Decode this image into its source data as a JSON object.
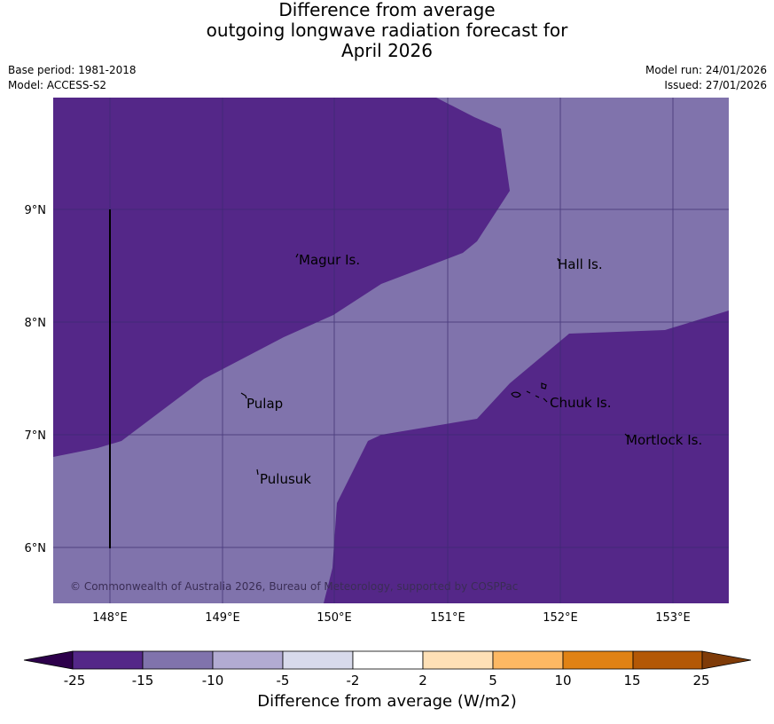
{
  "title": {
    "line1": "Difference from average",
    "line2": "outgoing longwave radiation forecast for",
    "line3": "April 2026"
  },
  "meta": {
    "base_period": "Base period: 1981-2018",
    "model": "Model: ACCESS-S2",
    "model_run": "Model run: 24/01/2026",
    "issued": "Issued: 27/01/2026"
  },
  "map": {
    "lon_ticks": [
      "148°E",
      "149°E",
      "150°E",
      "151°E",
      "152°E",
      "153°E"
    ],
    "lat_ticks": [
      "9°N",
      "8°N",
      "7°N",
      "6°N"
    ],
    "places": [
      "Magur Is.",
      "Hall Is.",
      "Pulap",
      "Chuuk Is.",
      "Mortlock Is.",
      "Pulusuk"
    ],
    "copyright": "© Commonwealth of Australia 2026, Bureau of Meteorology, supported by COSPPac",
    "colors": {
      "band_neg25_neg15": "#542788",
      "band_neg15_neg10": "#8073ac",
      "grid": "#3a2a66"
    }
  },
  "colorbar": {
    "label": "Difference from average (W/m2)",
    "ticks": [
      "-25",
      "-15",
      "-10",
      "-5",
      "-2",
      "2",
      "5",
      "10",
      "15",
      "25"
    ],
    "colors": [
      "#2d004b",
      "#542788",
      "#8073ac",
      "#b2abd2",
      "#d8daeb",
      "#ffffff",
      "#fee0b6",
      "#fdb863",
      "#e08214",
      "#b35806",
      "#7f3b08"
    ]
  }
}
